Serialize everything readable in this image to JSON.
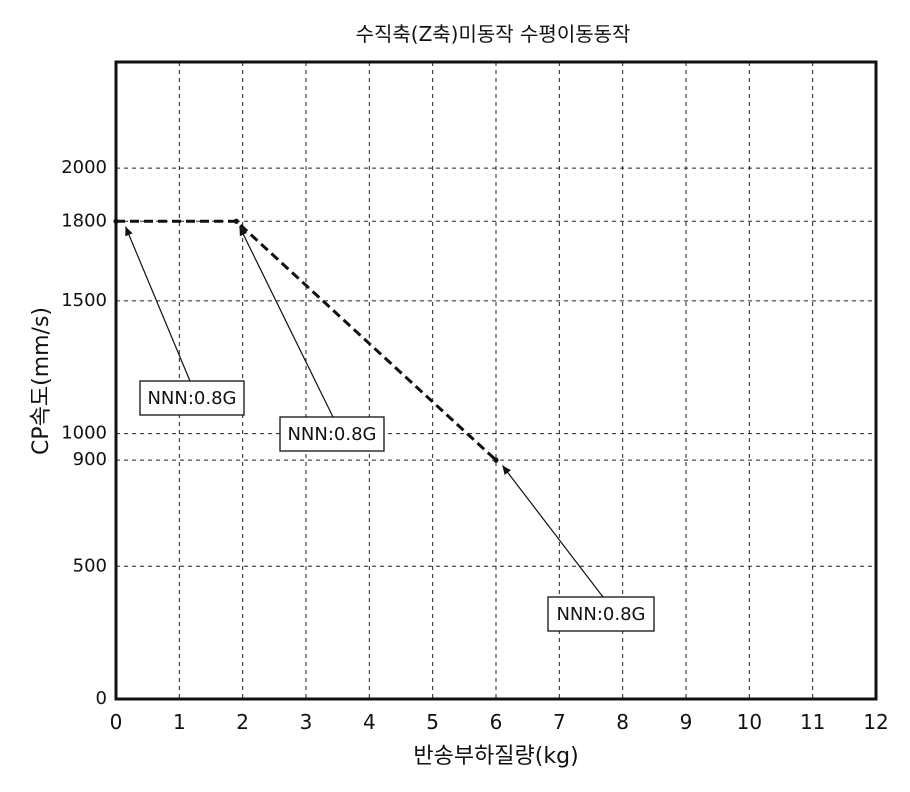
{
  "chart_data": {
    "type": "line",
    "title": "수직축(Z축)미동작 수평이동동작",
    "xlabel": "반송부하질량(kg)",
    "ylabel": "CP속도(mm/s)",
    "xlim": [
      0,
      12
    ],
    "ylim": [
      0,
      2400
    ],
    "xticks": [
      0,
      1,
      2,
      3,
      4,
      5,
      6,
      7,
      8,
      9,
      10,
      11,
      12
    ],
    "yticks": [
      0,
      500,
      900,
      1000,
      1500,
      1800,
      2000
    ],
    "grid": true,
    "series": [
      {
        "line_style": "dashed",
        "x": [
          0,
          1.9,
          6.0
        ],
        "y": [
          1800,
          1800,
          900
        ]
      }
    ],
    "annotations": [
      {
        "text": "NNN:0.8G",
        "target": [
          0.15,
          1780
        ]
      },
      {
        "text": "NNN:0.8G",
        "target": [
          1.95,
          1780
        ]
      },
      {
        "text": "NNN:0.8G",
        "target": [
          6.1,
          880
        ]
      }
    ]
  }
}
